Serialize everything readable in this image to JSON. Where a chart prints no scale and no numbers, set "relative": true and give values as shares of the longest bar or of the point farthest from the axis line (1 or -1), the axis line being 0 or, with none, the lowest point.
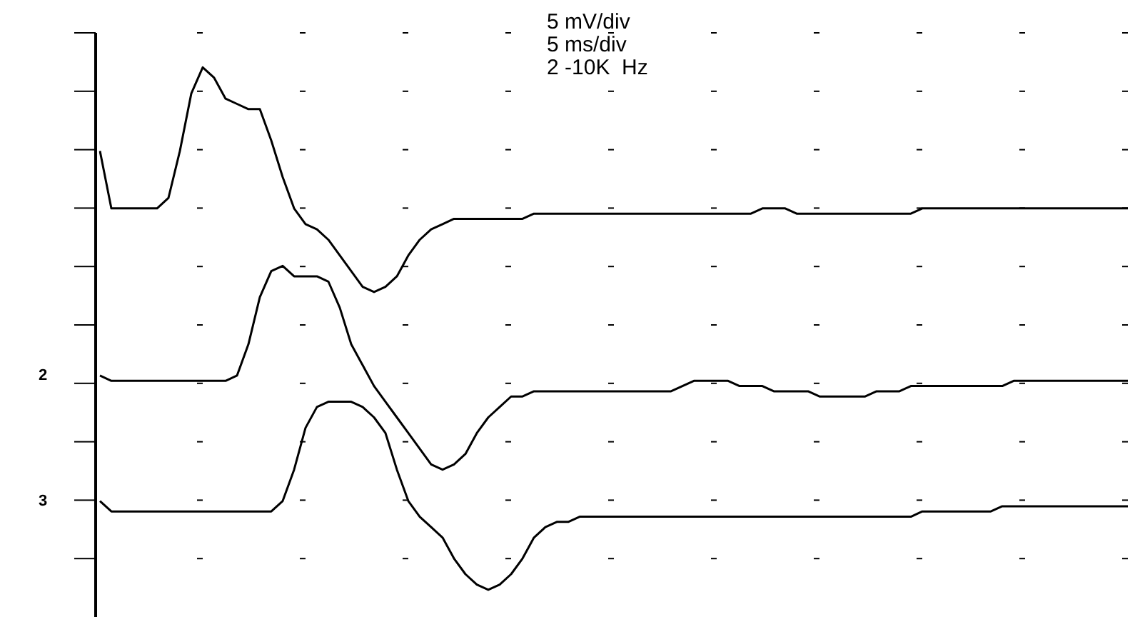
{
  "chart_data": {
    "type": "line",
    "relative": true,
    "legend": "left",
    "marker": "none",
    "line_style": "solid",
    "categories": [
      null,
      null,
      null,
      null,
      null,
      null,
      null,
      null,
      null,
      null,
      null,
      null,
      null,
      null,
      null,
      null,
      null,
      null,
      null,
      null,
      null,
      null,
      null,
      null,
      null,
      null,
      null,
      null,
      null,
      null,
      null,
      null,
      null,
      null,
      null,
      null,
      null,
      null,
      null,
      null,
      null,
      null,
      null,
      null,
      null,
      null,
      null,
      null,
      null,
      null,
      null,
      null,
      null,
      null,
      null,
      null,
      null,
      null,
      null,
      null,
      null,
      null,
      null,
      null,
      null,
      null,
      null,
      null,
      null,
      null,
      null,
      null,
      null,
      null,
      null,
      null,
      null,
      null,
      null,
      null,
      null,
      null,
      null,
      null,
      null,
      null,
      null,
      null,
      null,
      null,
      null
    ],
    "annotations": [
      "5 mV/div",
      "5 ms/div",
      "2 -10K  Hz"
    ],
    "series": [
      {
        "color": "#000000",
        "values": [
          0.84,
          0.73,
          0.73,
          0.73,
          0.73,
          0.73,
          0.75,
          0.84,
          0.95,
          1,
          0.98,
          0.94,
          0.93,
          0.92,
          0.92,
          0.86,
          0.79,
          0.73,
          0.7,
          0.69,
          0.67,
          0.64,
          0.61,
          0.58,
          0.57,
          0.58,
          0.6,
          0.64,
          0.67,
          0.69,
          0.7,
          0.71,
          0.71,
          0.71,
          0.71,
          0.71,
          0.71,
          0.71,
          0.72,
          0.72,
          0.72,
          0.72,
          0.72,
          0.72,
          0.72,
          0.72,
          0.72,
          0.72,
          0.72,
          0.72,
          0.72,
          0.72,
          0.72,
          0.72,
          0.72,
          0.72,
          0.72,
          0.72,
          0.73,
          0.73,
          0.73,
          0.72,
          0.72,
          0.72,
          0.72,
          0.72,
          0.72,
          0.72,
          0.72,
          0.72,
          0.72,
          0.72,
          0.73,
          0.73,
          0.73,
          0.73,
          0.73,
          0.73,
          0.73,
          0.73,
          0.73,
          0.73,
          0.73,
          0.73,
          0.73,
          0.73,
          0.73,
          0.73,
          0.73,
          0.73,
          0.73
        ]
      },
      {
        "name": "2",
        "color": "#000000",
        "values": [
          0.41,
          0.4,
          0.4,
          0.4,
          0.4,
          0.4,
          0.4,
          0.4,
          0.4,
          0.4,
          0.4,
          0.4,
          0.41,
          0.47,
          0.56,
          0.61,
          0.62,
          0.6,
          0.6,
          0.6,
          0.59,
          0.54,
          0.47,
          0.43,
          0.39,
          0.36,
          0.33,
          0.3,
          0.27,
          0.24,
          0.23,
          0.24,
          0.26,
          0.3,
          0.33,
          0.35,
          0.37,
          0.37,
          0.38,
          0.38,
          0.38,
          0.38,
          0.38,
          0.38,
          0.38,
          0.38,
          0.38,
          0.38,
          0.38,
          0.38,
          0.38,
          0.39,
          0.4,
          0.4,
          0.4,
          0.4,
          0.39,
          0.39,
          0.39,
          0.38,
          0.38,
          0.38,
          0.38,
          0.37,
          0.37,
          0.37,
          0.37,
          0.37,
          0.38,
          0.38,
          0.38,
          0.39,
          0.39,
          0.39,
          0.39,
          0.39,
          0.39,
          0.39,
          0.39,
          0.39,
          0.4,
          0.4,
          0.4,
          0.4,
          0.4,
          0.4,
          0.4,
          0.4,
          0.4,
          0.4,
          0.4
        ]
      },
      {
        "name": "3",
        "color": "#000000",
        "values": [
          0.17,
          0.15,
          0.15,
          0.15,
          0.15,
          0.15,
          0.15,
          0.15,
          0.15,
          0.15,
          0.15,
          0.15,
          0.15,
          0.15,
          0.15,
          0.15,
          0.17,
          0.23,
          0.31,
          0.35,
          0.36,
          0.36,
          0.36,
          0.35,
          0.33,
          0.3,
          0.23,
          0.17,
          0.14,
          0.12,
          0.1,
          0.06,
          0.03,
          0.01,
          0,
          0.01,
          0.03,
          0.06,
          0.1,
          0.12,
          0.13,
          0.13,
          0.14,
          0.14,
          0.14,
          0.14,
          0.14,
          0.14,
          0.14,
          0.14,
          0.14,
          0.14,
          0.14,
          0.14,
          0.14,
          0.14,
          0.14,
          0.14,
          0.14,
          0.14,
          0.14,
          0.14,
          0.14,
          0.14,
          0.14,
          0.14,
          0.14,
          0.14,
          0.14,
          0.14,
          0.14,
          0.14,
          0.15,
          0.15,
          0.15,
          0.15,
          0.15,
          0.15,
          0.15,
          0.16,
          0.16,
          0.16,
          0.16,
          0.16,
          0.16,
          0.16,
          0.16,
          0.16,
          0.16,
          0.16,
          0.16
        ]
      }
    ]
  }
}
